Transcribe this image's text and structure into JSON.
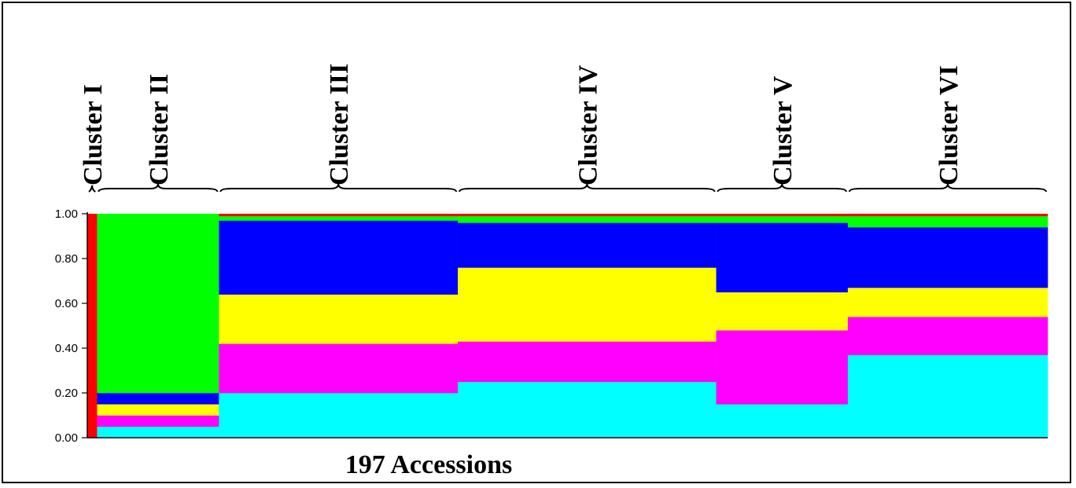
{
  "chart_data": {
    "type": "bar",
    "stacked": true,
    "n_accessions": 197,
    "xlabel": "197 Accessions",
    "ylabel": "",
    "ylim": [
      0,
      1
    ],
    "yticks": [
      "0.00",
      "0.20",
      "0.40",
      "0.60",
      "0.80",
      "1.00"
    ],
    "clusters": [
      {
        "label": "Cluster I",
        "start": 0,
        "end": 1
      },
      {
        "label": "Cluster II",
        "start": 2,
        "end": 26
      },
      {
        "label": "Cluster III",
        "start": 27,
        "end": 75
      },
      {
        "label": "Cluster IV",
        "start": 76,
        "end": 128
      },
      {
        "label": "Cluster V",
        "start": 129,
        "end": 155
      },
      {
        "label": "Cluster VI",
        "start": 156,
        "end": 196
      }
    ],
    "series_colors": {
      "cyan": "#00ffff",
      "magenta": "#ff00ff",
      "yellow": "#ffff00",
      "blue": "#0000ff",
      "green": "#00ff00",
      "red": "#ff0000"
    },
    "segments": [
      {
        "cluster": "Cluster I",
        "cyan": 0.0,
        "magenta": 0.0,
        "yellow": 0.0,
        "blue": 0.0,
        "green": 0.0,
        "red": 1.0
      },
      {
        "cluster": "Cluster II",
        "cyan": 0.05,
        "magenta": 0.05,
        "yellow": 0.05,
        "blue": 0.05,
        "green": 0.8,
        "red": 0.0
      },
      {
        "cluster": "Cluster III",
        "cyan": 0.2,
        "magenta": 0.22,
        "yellow": 0.22,
        "blue": 0.33,
        "green": 0.02,
        "red": 0.01
      },
      {
        "cluster": "Cluster IV",
        "cyan": 0.25,
        "magenta": 0.18,
        "yellow": 0.33,
        "blue": 0.2,
        "green": 0.03,
        "red": 0.01
      },
      {
        "cluster": "Cluster V",
        "cyan": 0.15,
        "magenta": 0.33,
        "yellow": 0.17,
        "blue": 0.31,
        "green": 0.03,
        "red": 0.01
      },
      {
        "cluster": "Cluster VI",
        "cyan": 0.37,
        "magenta": 0.17,
        "yellow": 0.13,
        "blue": 0.27,
        "green": 0.05,
        "red": 0.01
      }
    ]
  }
}
